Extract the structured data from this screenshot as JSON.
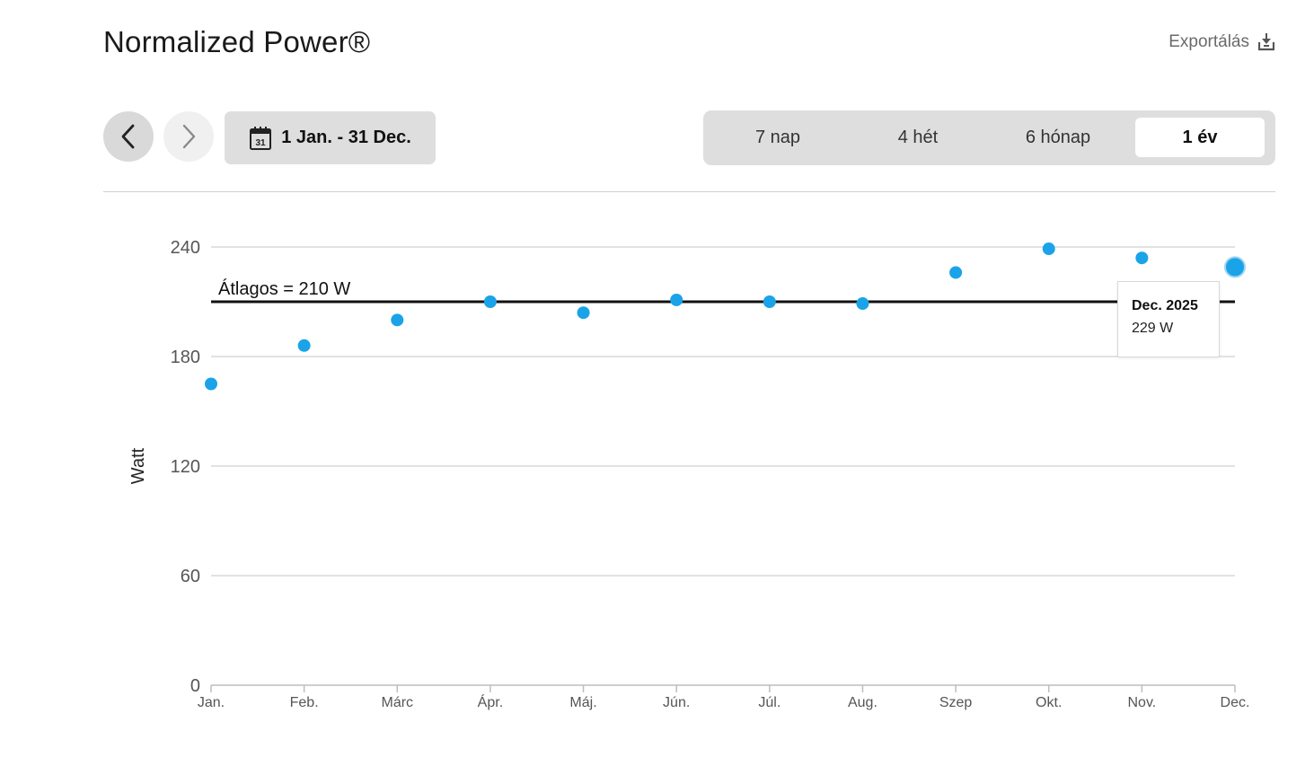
{
  "header": {
    "title": "Normalized Power®",
    "export_label": "Exportálás"
  },
  "toolbar": {
    "date_range": "1 Jan. - 31 Dec.",
    "calendar_day": "31",
    "ranges": [
      {
        "label": "7 nap",
        "active": false
      },
      {
        "label": "4 hét",
        "active": false
      },
      {
        "label": "6 hónap",
        "active": false
      },
      {
        "label": "1 év",
        "active": true
      }
    ]
  },
  "tooltip": {
    "title": "Dec. 2025",
    "value": "229 W"
  },
  "colors": {
    "accent": "#1aa3e8",
    "average_line": "#111111",
    "grid": "#d9d9d9"
  },
  "chart_data": {
    "type": "scatter",
    "categories": [
      "Jan.",
      "Feb.",
      "Márc",
      "Ápr.",
      "Máj.",
      "Jún.",
      "Júl.",
      "Aug.",
      "Szep",
      "Okt.",
      "Nov.",
      "Dec."
    ],
    "values": [
      165,
      186,
      200,
      210,
      204,
      211,
      210,
      209,
      226,
      239,
      234,
      229
    ],
    "highlighted_index": 11,
    "ylabel": "Watt",
    "xlabel": "",
    "ylim": [
      0,
      240
    ],
    "yticks": [
      0,
      60,
      120,
      180,
      240
    ],
    "average": {
      "value": 210,
      "label": "Átlagos = 210 W"
    },
    "grid": true
  }
}
